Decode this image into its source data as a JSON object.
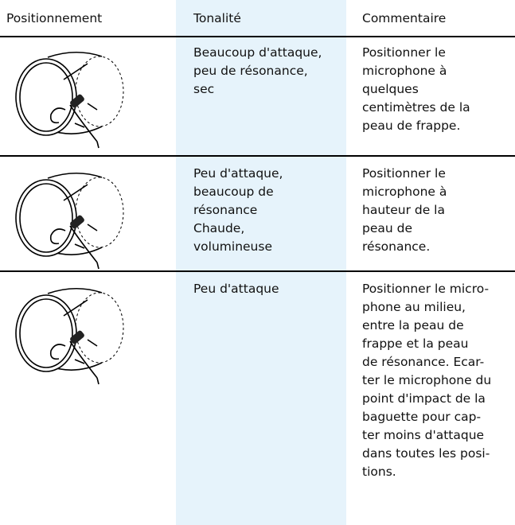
{
  "table": {
    "header": [
      "Positionnement",
      "Tonalité",
      "Commentaire"
    ],
    "rows": [
      {
        "tone": [
          "Beaucoup d'attaque,",
          "peu de résonance,",
          "sec"
        ],
        "comment": [
          "Positionner le",
          "microphone à",
          "quelques",
          "centimètres de la",
          "peau de frappe."
        ]
      },
      {
        "tone": [
          "Peu d'attaque,",
          "beaucoup de",
          "résonance",
          "Chaude,",
          "volumineuse"
        ],
        "comment": [
          "Positionner le",
          "microphone à",
          "hauteur de la",
          "peau de",
          "résonance."
        ]
      },
      {
        "tone": [
          "Peu d'attaque"
        ],
        "comment": [
          "Positionner le micro-",
          "phone au milieu,",
          "entre la peau de",
          "frappe et la peau",
          "de résonance. Ecar-",
          "ter le microphone du",
          "point d'impact de la",
          "baguette pour cap-",
          "ter moins d'attaque",
          "dans toutes les posi-",
          "tions."
        ]
      }
    ]
  }
}
